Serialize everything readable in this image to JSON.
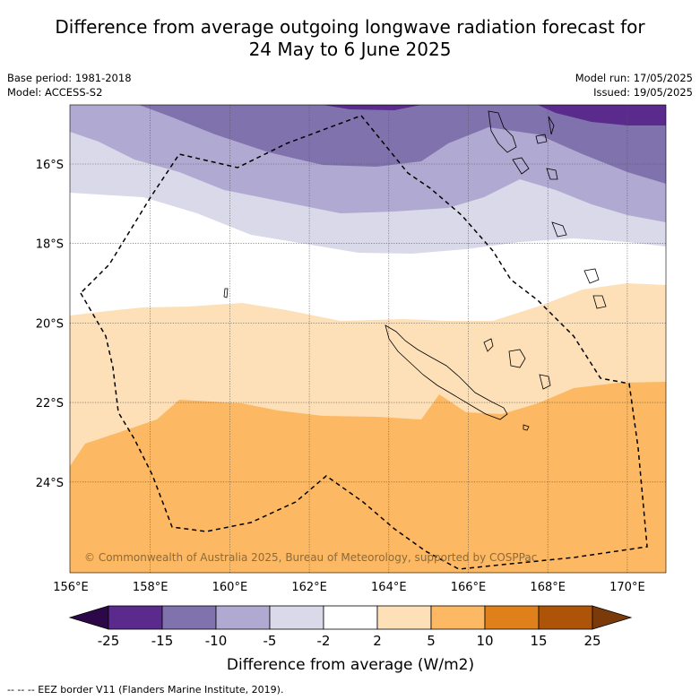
{
  "title_line1": "Difference from average outgoing longwave radiation forecast for",
  "title_line2": "24 May to 6 June 2025",
  "base_period": "Base period: 1981-2018",
  "model": "Model: ACCESS-S2",
  "model_run": "Model run: 17/05/2025",
  "issued": "Issued: 19/05/2025",
  "copyright": "© Commonwealth of Australia 2025, Bureau of Meteorology, supported by COSPPac",
  "colorbar_label": "Difference from average (W/m2)",
  "footer": "--  --  -- EEZ border V11 (Flanders Marine Institute, 2019).",
  "lon_ticks": [
    "156°E",
    "158°E",
    "160°E",
    "162°E",
    "164°E",
    "166°E",
    "168°E",
    "170°E"
  ],
  "lat_ticks": [
    "16°S",
    "18°S",
    "20°S",
    "22°S",
    "24°S"
  ],
  "colorbar": {
    "ticks": [
      "-25",
      "-15",
      "-10",
      "-5",
      "-2",
      "2",
      "5",
      "10",
      "15",
      "25"
    ],
    "colors": [
      "#5a2a8c",
      "#7f72ad",
      "#b0a9d1",
      "#d9d9ea",
      "#ffffff",
      "#fde0b8",
      "#fcb862",
      "#e0801a",
      "#ad5409"
    ],
    "extend_low_color": "#2d0848",
    "extend_high_color": "#7a3a0a"
  }
}
